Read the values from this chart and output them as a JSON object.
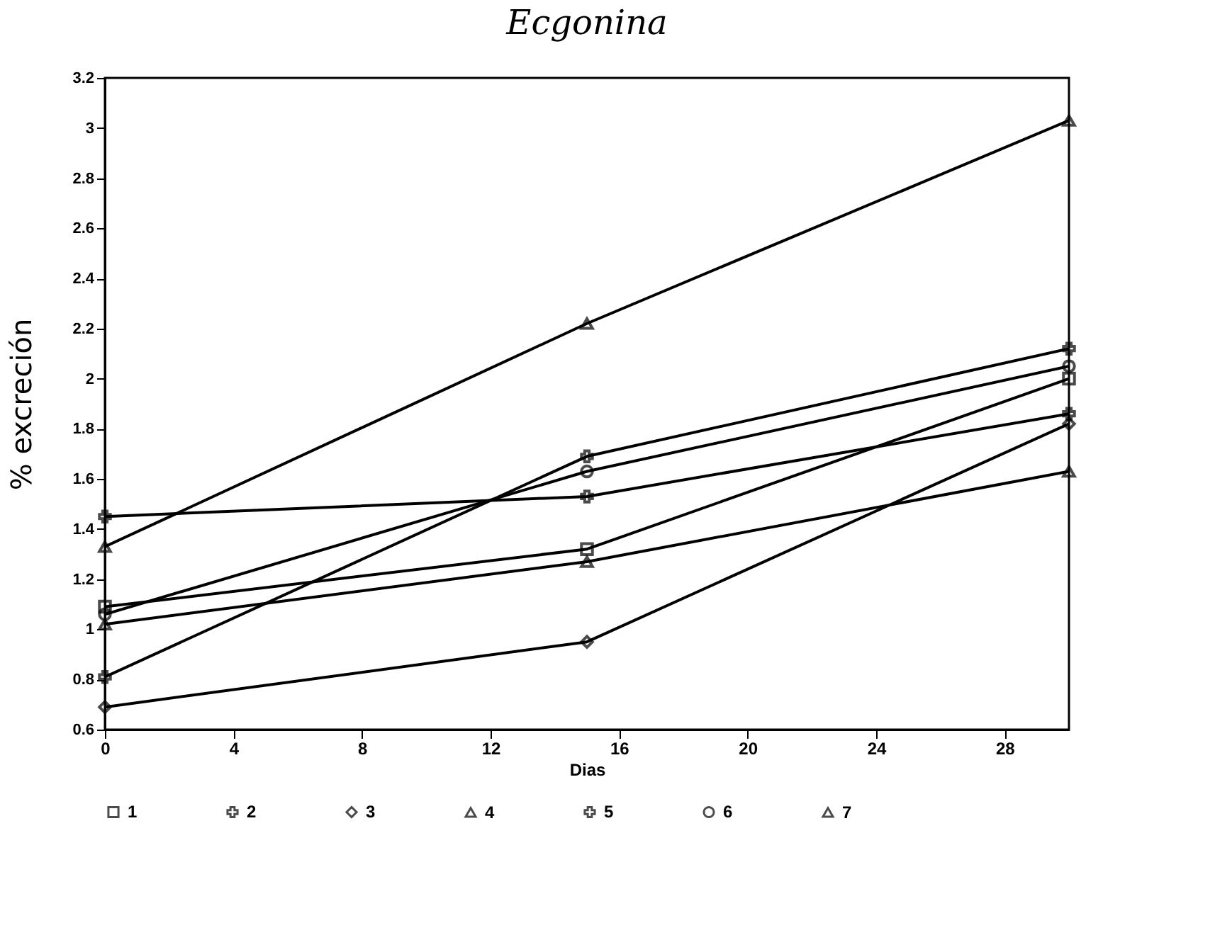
{
  "chart_data": {
    "type": "line",
    "title": "Ecgonina",
    "xlabel": "Dias",
    "ylabel": "% excreción",
    "x": [
      0,
      15,
      30
    ],
    "xlim": [
      0,
      30
    ],
    "xticks": [
      0,
      4,
      8,
      12,
      16,
      20,
      24,
      28
    ],
    "ylim": [
      0.6,
      3.2
    ],
    "yticks": [
      0.6,
      0.8,
      1,
      1.2,
      1.4,
      1.6,
      1.8,
      2,
      2.2,
      2.4,
      2.6,
      2.8,
      3,
      3.2
    ],
    "legend": "bottom",
    "grid": false,
    "series": [
      {
        "name": "1",
        "color": "#000000",
        "marker": "square",
        "values": [
          1.09,
          1.32,
          2.0
        ]
      },
      {
        "name": "2",
        "color": "#000000",
        "marker": "cross",
        "values": [
          0.81,
          1.69,
          2.12
        ]
      },
      {
        "name": "3",
        "color": "#000000",
        "marker": "diamond",
        "values": [
          0.69,
          0.95,
          1.82
        ]
      },
      {
        "name": "4",
        "color": "#000000",
        "marker": "triangle",
        "values": [
          1.02,
          1.27,
          1.63
        ]
      },
      {
        "name": "5",
        "color": "#000000",
        "marker": "cross",
        "values": [
          1.45,
          1.53,
          1.86
        ]
      },
      {
        "name": "6",
        "color": "#000000",
        "marker": "circle",
        "values": [
          1.06,
          1.63,
          2.05
        ]
      },
      {
        "name": "7",
        "color": "#000000",
        "marker": "triangle",
        "values": [
          1.33,
          2.22,
          3.03
        ]
      }
    ]
  }
}
